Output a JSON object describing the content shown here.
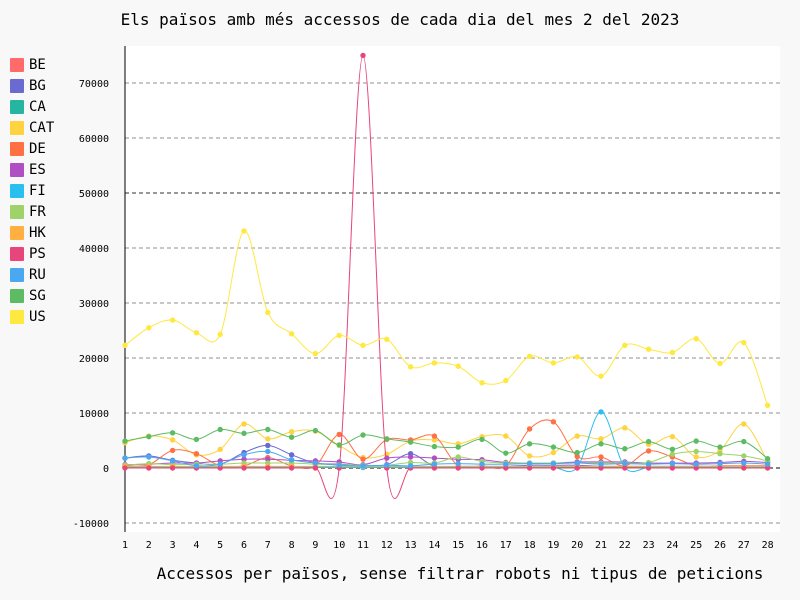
{
  "chart_data": {
    "type": "line",
    "title": "Els països amb més accessos de cada dia del mes 2 del 2023",
    "xlabel": "Accessos per països, sense filtrar robots ni tipus de peticions",
    "ylabel": "",
    "x": [
      1,
      2,
      3,
      4,
      5,
      6,
      7,
      8,
      9,
      10,
      11,
      12,
      13,
      14,
      15,
      16,
      17,
      18,
      19,
      20,
      21,
      22,
      23,
      24,
      25,
      26,
      27,
      28
    ],
    "ylim": [
      -12000,
      76500
    ],
    "yticks": [
      -10000,
      0,
      10000,
      20000,
      30000,
      40000,
      50000,
      60000,
      70000
    ],
    "legend_position": "left",
    "grid": "horizontal dashed",
    "series": [
      {
        "name": "BE",
        "color": "#ff6b6b",
        "values": [
          100,
          100,
          100,
          100,
          100,
          100,
          100,
          100,
          100,
          100,
          100,
          100,
          100,
          100,
          100,
          100,
          100,
          100,
          100,
          100,
          100,
          100,
          100,
          100,
          100,
          100,
          100,
          100
        ]
      },
      {
        "name": "BG",
        "color": "#6a6ad0",
        "values": [
          1800,
          2200,
          1400,
          900,
          700,
          2800,
          4100,
          2400,
          900,
          700,
          500,
          600,
          2600,
          300,
          300,
          300,
          300,
          500,
          500,
          500,
          300,
          300,
          300,
          300,
          300,
          300,
          300,
          300
        ]
      },
      {
        "name": "CA",
        "color": "#26b5a0",
        "values": [
          200,
          200,
          200,
          200,
          200,
          200,
          200,
          200,
          200,
          200,
          200,
          200,
          200,
          200,
          200,
          200,
          200,
          200,
          200,
          200,
          200,
          200,
          200,
          200,
          200,
          200,
          200,
          200
        ]
      },
      {
        "name": "CAT",
        "color": "#ffd23f",
        "values": [
          4600,
          5800,
          5100,
          2400,
          3400,
          8000,
          5300,
          6600,
          6700,
          4100,
          1900,
          2500,
          4900,
          5100,
          4400,
          5700,
          5800,
          2200,
          2800,
          5800,
          5300,
          7300,
          4300,
          5700,
          2000,
          3200,
          8000,
          1200
        ]
      },
      {
        "name": "DE",
        "color": "#ff7043",
        "values": [
          400,
          600,
          3200,
          2600,
          400,
          400,
          1900,
          400,
          400,
          6100,
          1600,
          5200,
          5100,
          5800,
          400,
          400,
          400,
          7100,
          8400,
          2100,
          2000,
          400,
          3100,
          2000,
          400,
          400,
          400,
          400
        ]
      },
      {
        "name": "ES",
        "color": "#b04fc4",
        "values": [
          600,
          700,
          900,
          900,
          1300,
          1600,
          1600,
          1400,
          1300,
          1100,
          600,
          1800,
          2000,
          1800,
          1600,
          1500,
          1000,
          900,
          900,
          1100,
          1100,
          1100,
          900,
          900,
          900,
          1000,
          1200,
          1000
        ]
      },
      {
        "name": "FI",
        "color": "#29c0f0",
        "values": [
          100,
          100,
          100,
          100,
          100,
          100,
          100,
          100,
          100,
          100,
          100,
          100,
          100,
          100,
          100,
          100,
          100,
          100,
          100,
          100,
          10200,
          100,
          100,
          100,
          100,
          100,
          100,
          100
        ]
      },
      {
        "name": "FR",
        "color": "#9ed36a",
        "values": [
          500,
          800,
          600,
          700,
          700,
          900,
          900,
          900,
          700,
          600,
          500,
          500,
          1000,
          900,
          2000,
          1200,
          900,
          900,
          900,
          900,
          900,
          900,
          1000,
          2500,
          3000,
          2600,
          2200,
          1300
        ]
      },
      {
        "name": "HK",
        "color": "#ffb040",
        "values": [
          300,
          300,
          300,
          300,
          300,
          300,
          300,
          300,
          300,
          300,
          300,
          300,
          300,
          300,
          300,
          300,
          300,
          300,
          300,
          300,
          300,
          300,
          300,
          300,
          300,
          300,
          300,
          300
        ]
      },
      {
        "name": "PS",
        "color": "#e8457a",
        "values": [
          0,
          0,
          0,
          0,
          0,
          0,
          0,
          0,
          0,
          0,
          75000,
          0,
          0,
          0,
          0,
          0,
          0,
          0,
          0,
          0,
          0,
          0,
          0,
          0,
          0,
          0,
          0,
          0
        ]
      },
      {
        "name": "RU",
        "color": "#4aa8f0",
        "values": [
          1800,
          2000,
          1300,
          400,
          700,
          2400,
          3000,
          1500,
          900,
          500,
          400,
          500,
          400,
          700,
          800,
          700,
          700,
          800,
          800,
          900,
          700,
          800,
          700,
          800,
          700,
          800,
          900,
          700
        ]
      },
      {
        "name": "SG",
        "color": "#5dbb63",
        "values": [
          4900,
          5700,
          6400,
          5200,
          7000,
          6300,
          7000,
          5600,
          6800,
          4200,
          6000,
          5300,
          4700,
          3900,
          3800,
          5200,
          2700,
          4400,
          3800,
          2800,
          4400,
          3500,
          4800,
          3400,
          4900,
          3800,
          4800,
          1700
        ]
      },
      {
        "name": "US",
        "color": "#ffe83f",
        "values": [
          22300,
          25500,
          26900,
          24600,
          24300,
          43100,
          28300,
          24400,
          20800,
          24100,
          22300,
          23400,
          18400,
          19100,
          18500,
          15500,
          15900,
          20300,
          19100,
          20200,
          16700,
          22300,
          21600,
          21000,
          23500,
          19000,
          22800,
          11400
        ]
      }
    ]
  }
}
